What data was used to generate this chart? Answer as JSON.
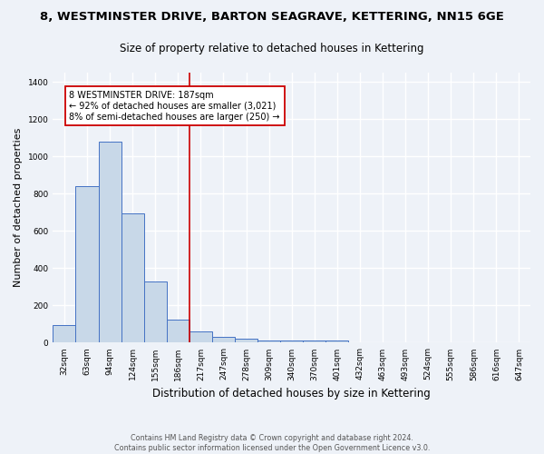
{
  "title": "8, WESTMINSTER DRIVE, BARTON SEAGRAVE, KETTERING, NN15 6GE",
  "subtitle": "Size of property relative to detached houses in Kettering",
  "xlabel": "Distribution of detached houses by size in Kettering",
  "ylabel": "Number of detached properties",
  "categories": [
    "32sqm",
    "63sqm",
    "94sqm",
    "124sqm",
    "155sqm",
    "186sqm",
    "217sqm",
    "247sqm",
    "278sqm",
    "309sqm",
    "340sqm",
    "370sqm",
    "401sqm",
    "432sqm",
    "463sqm",
    "493sqm",
    "524sqm",
    "555sqm",
    "586sqm",
    "616sqm",
    "647sqm"
  ],
  "values": [
    97,
    840,
    1080,
    693,
    327,
    125,
    60,
    30,
    20,
    12,
    10,
    10,
    12,
    0,
    0,
    0,
    0,
    0,
    0,
    0,
    0
  ],
  "bar_color": "#c8d8e8",
  "bar_edge_color": "#4472c4",
  "vline_x": 5.5,
  "vline_color": "#cc0000",
  "annotation_text": "8 WESTMINSTER DRIVE: 187sqm\n← 92% of detached houses are smaller (3,021)\n8% of semi-detached houses are larger (250) →",
  "annotation_box_color": "white",
  "annotation_box_edge_color": "#cc0000",
  "ylim": [
    0,
    1450
  ],
  "yticks": [
    0,
    200,
    400,
    600,
    800,
    1000,
    1200,
    1400
  ],
  "footer_text": "Contains HM Land Registry data © Crown copyright and database right 2024.\nContains public sector information licensed under the Open Government Licence v3.0.",
  "bg_color": "#eef2f8",
  "grid_color": "white",
  "title_fontsize": 9.5,
  "subtitle_fontsize": 8.5,
  "ylabel_fontsize": 8,
  "xlabel_fontsize": 8.5,
  "tick_fontsize": 6.5,
  "annotation_fontsize": 7,
  "footer_fontsize": 5.8
}
